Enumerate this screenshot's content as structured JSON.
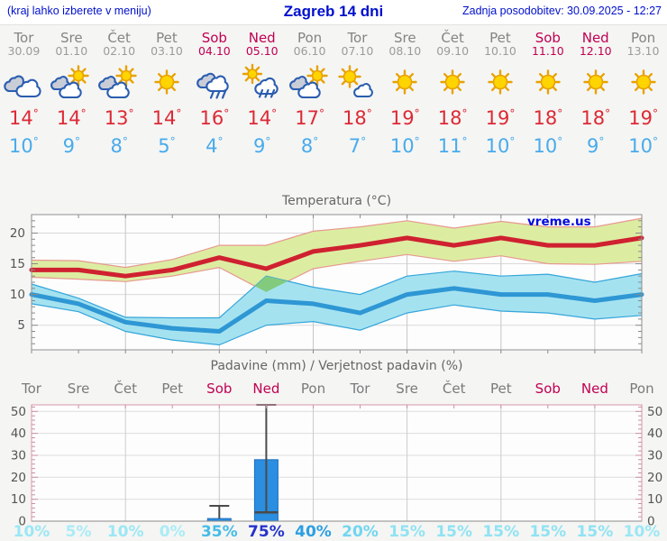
{
  "header": {
    "left_note": "(kraj lahko izberete v meniju)",
    "title": "Zagreb 14 dni",
    "updated": "Zadnja posodobitev: 30.09.2025 - 12:27"
  },
  "colors": {
    "header_text": "#0010cc",
    "day_name": "#848484",
    "day_date": "#9b9b9b",
    "weekend": "#c00052",
    "temp_max_text": "#dd2936",
    "temp_min_text": "#48abec",
    "page_bg": "#f5f5f3",
    "plot_bg": "#fdfdfd"
  },
  "forecast": {
    "degree_symbol": "°",
    "days": [
      {
        "name": "Tor",
        "date": "30.09",
        "weekend": false,
        "icon": "cloudy",
        "tmax": 14,
        "tmin": 10,
        "prob": "10%",
        "prob_color": "#9be7f5"
      },
      {
        "name": "Sre",
        "date": "01.10",
        "weekend": false,
        "icon": "partly",
        "tmax": 14,
        "tmin": 9,
        "prob": "5%",
        "prob_color": "#a8ecf7"
      },
      {
        "name": "Čet",
        "date": "02.10",
        "weekend": false,
        "icon": "partly",
        "tmax": 13,
        "tmin": 8,
        "prob": "10%",
        "prob_color": "#9be7f5"
      },
      {
        "name": "Pet",
        "date": "03.10",
        "weekend": false,
        "icon": "sunny",
        "tmax": 14,
        "tmin": 5,
        "prob": "0%",
        "prob_color": "#a8ecf7"
      },
      {
        "name": "Sob",
        "date": "04.10",
        "weekend": true,
        "icon": "rain",
        "tmax": 16,
        "tmin": 4,
        "prob": "35%",
        "prob_color": "#45bce8"
      },
      {
        "name": "Ned",
        "date": "05.10",
        "weekend": true,
        "icon": "sun-rain",
        "tmax": 14,
        "tmin": 9,
        "prob": "75%",
        "prob_color": "#2433cb"
      },
      {
        "name": "Pon",
        "date": "06.10",
        "weekend": false,
        "icon": "partly",
        "tmax": 17,
        "tmin": 8,
        "prob": "40%",
        "prob_color": "#2d9fe2"
      },
      {
        "name": "Tor",
        "date": "07.10",
        "weekend": false,
        "icon": "mostly-sunny",
        "tmax": 18,
        "tmin": 7,
        "prob": "20%",
        "prob_color": "#70d6f0"
      },
      {
        "name": "Sre",
        "date": "08.10",
        "weekend": false,
        "icon": "sunny",
        "tmax": 19,
        "tmin": 10,
        "prob": "15%",
        "prob_color": "#8fe3f3"
      },
      {
        "name": "Čet",
        "date": "09.10",
        "weekend": false,
        "icon": "sunny",
        "tmax": 18,
        "tmin": 11,
        "prob": "15%",
        "prob_color": "#8fe3f3"
      },
      {
        "name": "Pet",
        "date": "10.10",
        "weekend": false,
        "icon": "sunny",
        "tmax": 19,
        "tmin": 10,
        "prob": "15%",
        "prob_color": "#8fe3f3"
      },
      {
        "name": "Sob",
        "date": "11.10",
        "weekend": true,
        "icon": "sunny",
        "tmax": 18,
        "tmin": 10,
        "prob": "15%",
        "prob_color": "#8fe3f3"
      },
      {
        "name": "Ned",
        "date": "12.10",
        "weekend": true,
        "icon": "sunny",
        "tmax": 18,
        "tmin": 9,
        "prob": "15%",
        "prob_color": "#8fe3f3"
      },
      {
        "name": "Pon",
        "date": "13.10",
        "weekend": false,
        "icon": "sunny",
        "tmax": 19,
        "tmin": 10,
        "prob": "10%",
        "prob_color": "#9be7f5"
      }
    ]
  },
  "chart_data": [
    {
      "type": "line",
      "title": "Temperatura (°C)",
      "watermark": "vreme.us",
      "watermark_color": "#0009dd",
      "x_labels": [
        "Tor",
        "Sre",
        "Čet",
        "Pet",
        "Sob",
        "Ned",
        "Pon",
        "Tor",
        "Sre",
        "Čet",
        "Pet",
        "Sob",
        "Ned",
        "Pon"
      ],
      "ylim": [
        1,
        23
      ],
      "yticks": [
        5,
        10,
        15,
        20
      ],
      "grid": true,
      "series": [
        {
          "name": "max temperatura",
          "color": "#cf2130",
          "values": [
            14,
            14,
            13,
            14,
            16,
            14.2,
            17,
            18,
            19.2,
            18,
            19.2,
            18,
            18,
            19.2
          ],
          "band_hi": [
            15.6,
            15.5,
            14.4,
            15.7,
            18,
            18,
            20.3,
            21,
            22,
            20.8,
            21.9,
            21,
            21,
            22.4
          ],
          "band_lo": [
            12.8,
            12.5,
            12.1,
            13,
            14.4,
            10.4,
            14.2,
            15.4,
            16.5,
            15.4,
            16.3,
            15,
            14.9,
            15.4
          ],
          "band_fill": "#dceda2",
          "band_edge": "#e89890"
        },
        {
          "name": "min temperatura",
          "color": "#2e97d4",
          "values": [
            10,
            8.5,
            5.5,
            4.5,
            4,
            9,
            8.5,
            7,
            10,
            11,
            10,
            10,
            9,
            10
          ],
          "band_hi": [
            11.7,
            9.4,
            6.3,
            6.2,
            6.2,
            13,
            11.2,
            10,
            13,
            13.8,
            13,
            13.3,
            12,
            13.4
          ],
          "band_lo": [
            8.5,
            7.2,
            4,
            2.6,
            1.8,
            5,
            5.6,
            4.2,
            7,
            8.3,
            7.3,
            7,
            6,
            6.6
          ],
          "band_fill": "#a5e2f0",
          "band_edge": "#35a5da"
        }
      ],
      "band_overlap": {
        "fill": "#82cb7e",
        "points": [
          [
            4.76,
            11.36
          ],
          [
            5,
            13
          ],
          [
            5.46,
            12.16
          ],
          [
            5,
            10.4
          ]
        ]
      }
    },
    {
      "type": "bar",
      "title": "Padavine (mm) / Verjetnost padavin (%)",
      "x_labels": [
        "Tor",
        "Sre",
        "Čet",
        "Pet",
        "Sob",
        "Ned",
        "Pon",
        "Tor",
        "Sre",
        "Čet",
        "Pet",
        "Sob",
        "Ned",
        "Pon"
      ],
      "ylim": [
        0,
        53
      ],
      "yticks": [
        0,
        10,
        20,
        30,
        40,
        50
      ],
      "values": [
        0,
        0,
        0,
        0,
        1.2,
        28,
        0,
        0,
        0,
        0,
        0,
        0,
        0,
        0
      ],
      "bar_color": "#2b8ee0",
      "bar_edge": "#1d6fc0",
      "whisker_color": "#4a4a4a",
      "whiskers": [
        null,
        null,
        null,
        null,
        {
          "from": 1.2,
          "to": 7,
          "cap": true
        },
        {
          "from": 4,
          "to": 53,
          "cap": true,
          "cross": 4
        },
        null,
        null,
        null,
        null,
        null,
        null,
        null,
        null
      ],
      "probabilities": [
        "10%",
        "5%",
        "10%",
        "0%",
        "35%",
        "75%",
        "40%",
        "20%",
        "15%",
        "15%",
        "15%",
        "15%",
        "15%",
        "10%"
      ]
    }
  ]
}
